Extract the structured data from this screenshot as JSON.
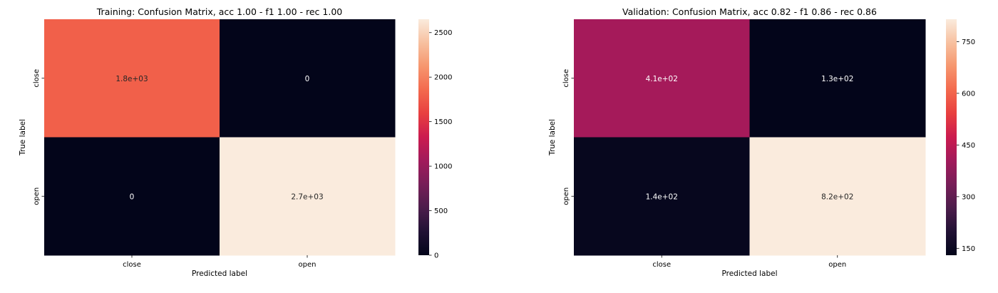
{
  "chart_data": [
    {
      "type": "heatmap",
      "title": "Training: Confusion Matrix, acc 1.00 - f1 1.00 - rec 1.00",
      "xlabel": "Predicted label",
      "ylabel": "True label",
      "x_categories": [
        "close",
        "open"
      ],
      "y_categories": [
        "close",
        "open"
      ],
      "values": [
        [
          1800,
          0
        ],
        [
          0,
          2700
        ]
      ],
      "annotations": [
        [
          "1.8e+03",
          "0"
        ],
        [
          "0",
          "2.7e+03"
        ]
      ],
      "colorbar": {
        "range": [
          0,
          2650
        ],
        "ticks": [
          0,
          500,
          1000,
          1500,
          2000,
          2500
        ],
        "colormap": "rocket"
      },
      "grid": false
    },
    {
      "type": "heatmap",
      "title": "Validation: Confusion Matrix, acc 0.82 - f1 0.86 - rec 0.86",
      "xlabel": "Predicted label",
      "ylabel": "True label",
      "x_categories": [
        "close",
        "open"
      ],
      "y_categories": [
        "close",
        "open"
      ],
      "values": [
        [
          410,
          130
        ],
        [
          140,
          820
        ]
      ],
      "annotations": [
        [
          "4.1e+02",
          "1.3e+02"
        ],
        [
          "1.4e+02",
          "8.2e+02"
        ]
      ],
      "colorbar": {
        "range": [
          130,
          815
        ],
        "ticks": [
          150,
          300,
          450,
          600,
          750
        ],
        "colormap": "rocket"
      },
      "grid": false
    }
  ]
}
